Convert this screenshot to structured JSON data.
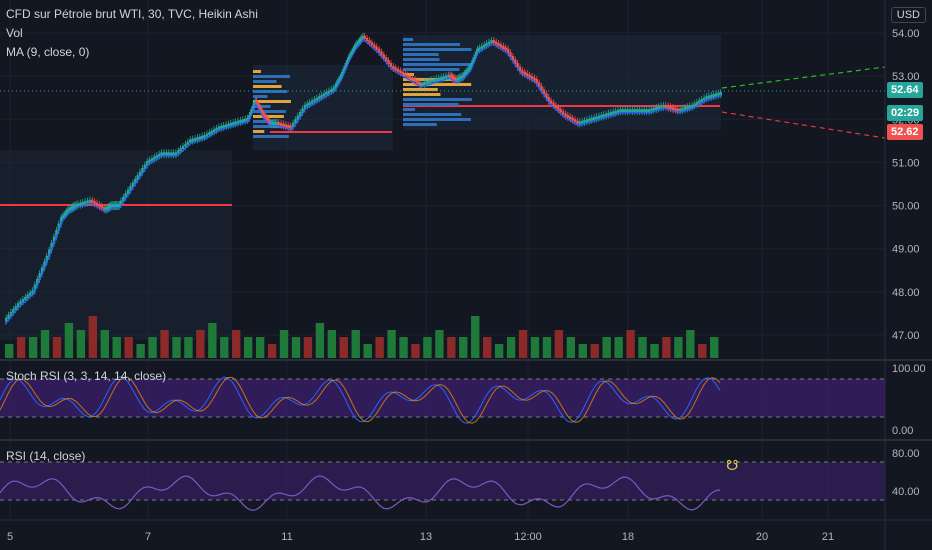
{
  "header": {
    "title": "CFD sur Pétrole brut WTI, 30, TVC, Heikin Ashi",
    "vol_label": "Vol",
    "ma_label": "MA (9, close, 0)",
    "currency": "USD"
  },
  "price_labels": {
    "last": "52.64",
    "countdown": "02:29",
    "prev": "52.62",
    "last_color": "#26a69a",
    "prev_color": "#ef5350"
  },
  "chart_data": [
    {
      "type": "line",
      "ylim": [
        46.6,
        54.2
      ],
      "yticks": [
        "54.00",
        "53.00",
        "52.00",
        "51.00",
        "50.00",
        "49.00",
        "48.00",
        "47.00"
      ],
      "xticks": [
        "5",
        "7",
        "11",
        "13",
        "12:00",
        "18",
        "20",
        "21"
      ],
      "series": [
        {
          "name": "CFD sur Pétrole brut WTI",
          "color": "#26a69a",
          "x": [
            0,
            2,
            4,
            6,
            8,
            9,
            10,
            12,
            14,
            15,
            16,
            18,
            20,
            22,
            24,
            26,
            28,
            30,
            32,
            34,
            35,
            36,
            37,
            38,
            40,
            42,
            44,
            46,
            47,
            48,
            49,
            50,
            52,
            54,
            56,
            58,
            60,
            62,
            63,
            64,
            65,
            66,
            68,
            70,
            72,
            74,
            76,
            78,
            80,
            82,
            84,
            86,
            88,
            90,
            92,
            94,
            96,
            98,
            100
          ],
          "y": [
            47.3,
            47.7,
            48.0,
            48.8,
            49.7,
            49.9,
            50.0,
            50.1,
            49.9,
            50.0,
            50.0,
            50.5,
            51.0,
            51.2,
            51.2,
            51.5,
            51.6,
            51.8,
            51.9,
            52.0,
            52.4,
            52.1,
            51.9,
            51.9,
            51.8,
            52.3,
            52.5,
            52.7,
            53.0,
            53.4,
            53.7,
            53.9,
            53.6,
            53.2,
            53.0,
            52.8,
            52.9,
            53.0,
            52.9,
            53.0,
            53.2,
            53.6,
            53.8,
            53.6,
            53.1,
            52.9,
            52.4,
            52.1,
            51.9,
            52.0,
            52.1,
            52.2,
            52.2,
            52.2,
            52.3,
            52.2,
            52.3,
            52.5,
            52.6
          ]
        }
      ]
    },
    {
      "type": "bar",
      "name": "Vol",
      "values": [
        2,
        3,
        3,
        4,
        3,
        5,
        4,
        6,
        4,
        3,
        3,
        2,
        3,
        4,
        3,
        3,
        4,
        5,
        3,
        4,
        3,
        3,
        2,
        4,
        3,
        3,
        5,
        4,
        3,
        4,
        2,
        3,
        4,
        3,
        2,
        3,
        4,
        3,
        3,
        6,
        3,
        2,
        3,
        4,
        3,
        3,
        4,
        3,
        2,
        2,
        3,
        3,
        4,
        3,
        2,
        3,
        3,
        4,
        2,
        3
      ]
    },
    {
      "type": "line",
      "name": "Stoch RSI (3, 3, 14, 14, close)",
      "ylim": [
        0,
        100
      ],
      "yticks": [
        "100.00",
        "0.00"
      ]
    },
    {
      "type": "line",
      "name": "RSI (14, close)",
      "ylim": [
        30,
        90
      ],
      "yticks": [
        "80.00",
        "40.00"
      ]
    }
  ],
  "indicators": {
    "stoch_label": "Stoch RSI (3, 3, 14, 14, close)",
    "rsi_label": "RSI (14, close)"
  }
}
